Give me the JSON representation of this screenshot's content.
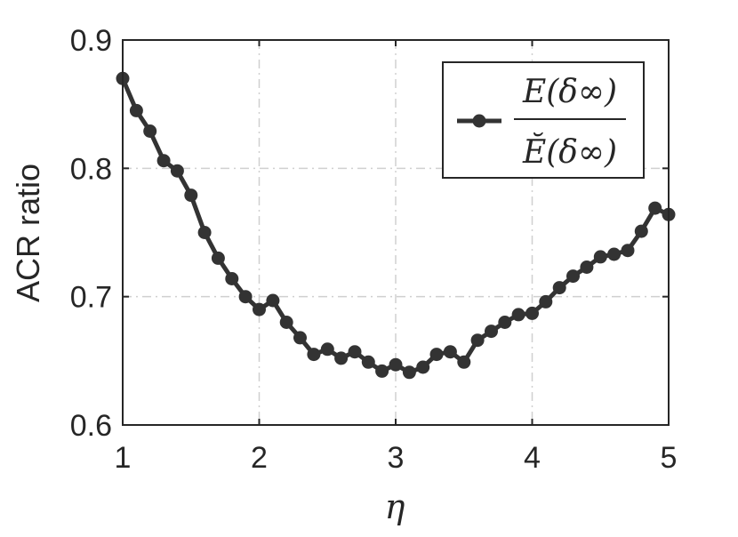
{
  "chart_data": {
    "type": "line",
    "xlabel": "η",
    "ylabel": "ACR ratio",
    "xlim": [
      1,
      5
    ],
    "ylim": [
      0.6,
      0.9
    ],
    "xticks": [
      "1",
      "2",
      "3",
      "4",
      "5"
    ],
    "yticks": [
      "0.6",
      "0.7",
      "0.8",
      "0.9"
    ],
    "grid": true,
    "legend_position": "top-right",
    "series": [
      {
        "legend": {
          "numerator": "E(δ∞)",
          "denominator": "Ĕ(δ∞)"
        },
        "color": "#333333",
        "x": [
          1.0,
          1.1,
          1.2,
          1.3,
          1.4,
          1.5,
          1.6,
          1.7,
          1.8,
          1.9,
          2.0,
          2.1,
          2.2,
          2.3,
          2.4,
          2.5,
          2.6,
          2.7,
          2.8,
          2.9,
          3.0,
          3.1,
          3.2,
          3.3,
          3.4,
          3.5,
          3.6,
          3.7,
          3.8,
          3.9,
          4.0,
          4.1,
          4.2,
          4.3,
          4.4,
          4.5,
          4.6,
          4.7,
          4.8,
          4.9,
          5.0
        ],
        "y": [
          0.87,
          0.845,
          0.829,
          0.806,
          0.798,
          0.779,
          0.75,
          0.73,
          0.714,
          0.7,
          0.69,
          0.697,
          0.68,
          0.668,
          0.655,
          0.659,
          0.652,
          0.657,
          0.649,
          0.642,
          0.647,
          0.641,
          0.645,
          0.655,
          0.657,
          0.649,
          0.666,
          0.673,
          0.68,
          0.686,
          0.687,
          0.696,
          0.707,
          0.716,
          0.723,
          0.731,
          0.733,
          0.736,
          0.751,
          0.769,
          0.764
        ]
      }
    ]
  }
}
